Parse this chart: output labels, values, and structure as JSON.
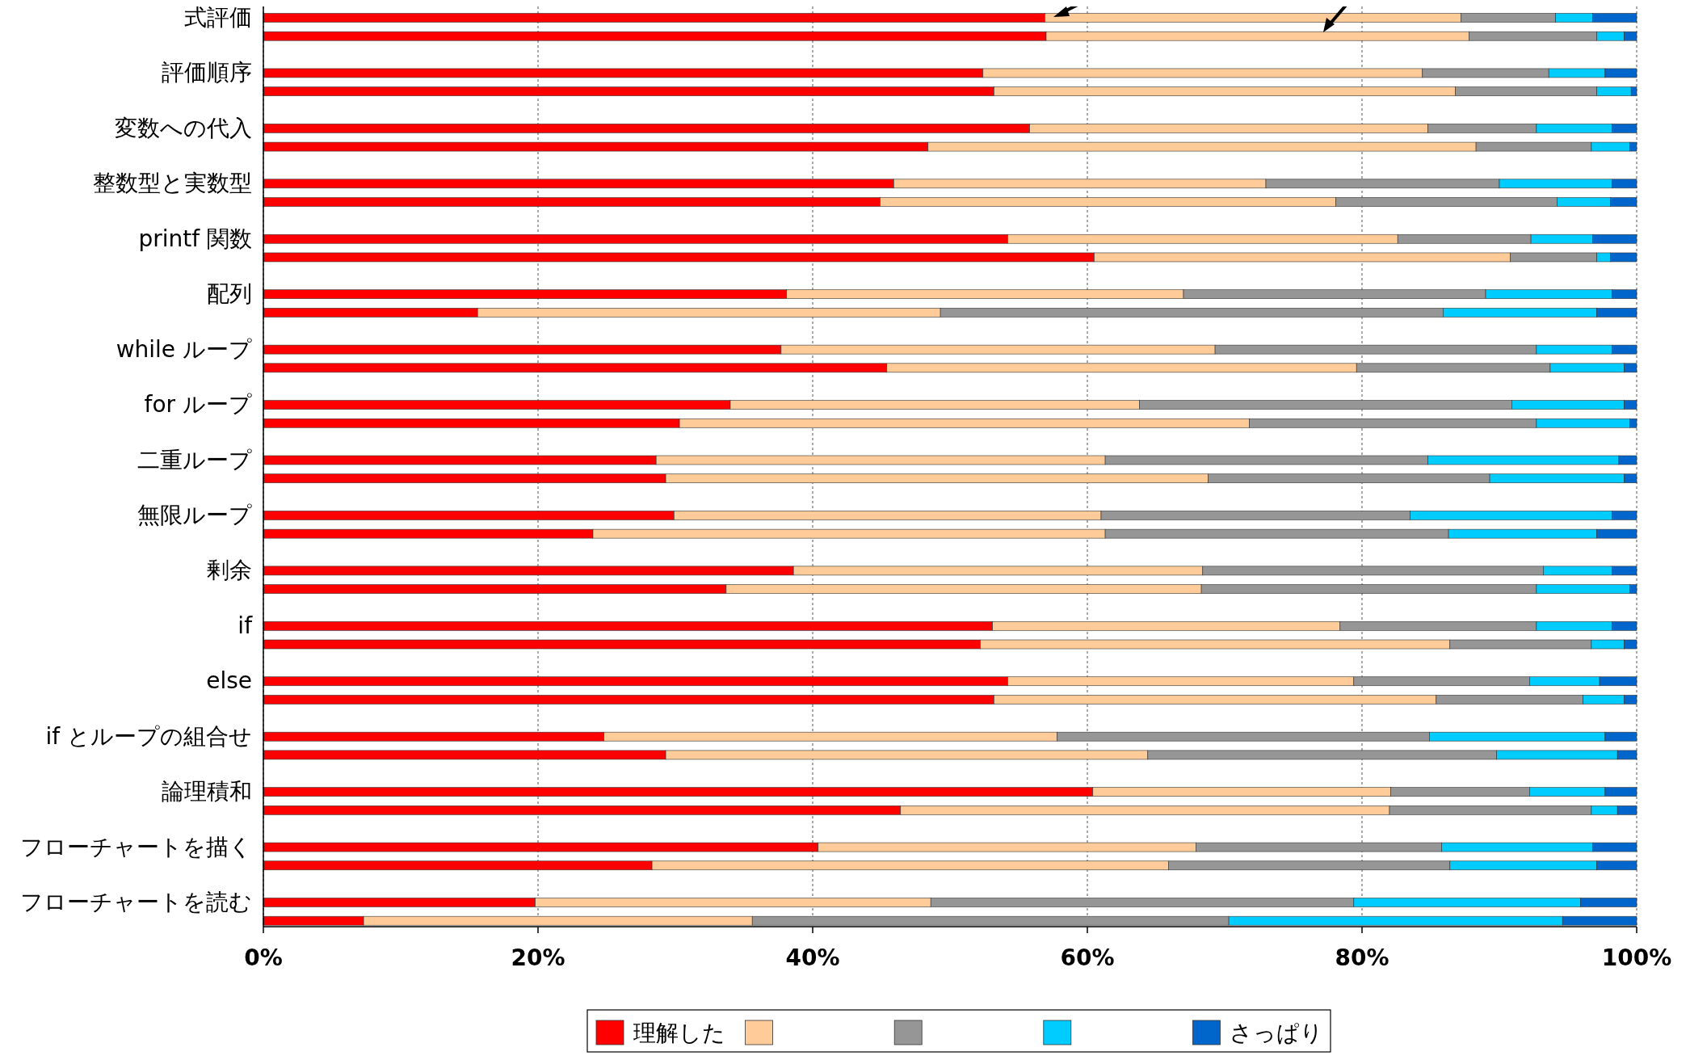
{
  "chart_data": {
    "type": "bar",
    "orientation": "horizontal",
    "stacked": true,
    "grid": "x",
    "legend": "bottom",
    "categories": [
      "式評価",
      null,
      "評価順序",
      null,
      "変数への代入",
      null,
      "整数型と実数型",
      null,
      "printf 関数",
      null,
      "配列",
      null,
      "while ループ",
      null,
      "for ループ",
      null,
      "二重ループ",
      null,
      "無限ループ",
      null,
      "剰余",
      null,
      "if",
      null,
      "else",
      null,
      "if とループの組合せ",
      null,
      "論理積和",
      null,
      "フローチャートを描く",
      null,
      "フローチャートを読む",
      null
    ],
    "xlim": [
      0,
      100
    ],
    "xticks": [
      {
        "value": 0,
        "label": "0%"
      },
      {
        "value": 20,
        "label": "20%"
      },
      {
        "value": 40,
        "label": "40%"
      },
      {
        "value": 60,
        "label": "60%"
      },
      {
        "value": 80,
        "label": "80%"
      },
      {
        "value": 100,
        "label": "100%"
      }
    ],
    "series": [
      {
        "name": "理解した",
        "color": "#ff0000",
        "values": [
          56.9,
          57.0,
          52.4,
          53.2,
          55.8,
          48.4,
          45.9,
          44.9,
          54.2,
          60.5,
          38.1,
          15.6,
          37.7,
          45.4,
          34.0,
          30.3,
          28.6,
          29.3,
          29.9,
          24.0,
          38.6,
          33.7,
          53.1,
          52.2,
          54.2,
          53.2,
          24.8,
          29.3,
          60.4,
          46.4,
          40.4,
          28.3,
          19.8,
          7.3
        ]
      },
      {
        "color": "#ffcc99",
        "values": [
          30.3,
          30.8,
          32.0,
          33.6,
          29.0,
          39.9,
          27.1,
          33.2,
          28.4,
          30.3,
          28.9,
          33.7,
          31.6,
          34.2,
          29.8,
          41.5,
          32.7,
          39.5,
          31.1,
          37.3,
          29.8,
          34.6,
          25.3,
          34.2,
          25.2,
          32.2,
          33.0,
          35.1,
          21.7,
          35.6,
          27.5,
          37.6,
          28.8,
          28.3
        ]
      },
      {
        "color": "#969696",
        "values": [
          6.9,
          9.3,
          9.2,
          10.3,
          7.9,
          8.4,
          17.0,
          16.1,
          9.7,
          6.3,
          22.0,
          36.6,
          23.4,
          14.1,
          27.1,
          20.9,
          23.5,
          20.5,
          22.5,
          25.0,
          24.8,
          24.4,
          14.3,
          10.3,
          12.8,
          10.7,
          27.1,
          25.4,
          10.1,
          14.7,
          17.9,
          20.5,
          30.8,
          34.7
        ]
      },
      {
        "color": "#00ccff",
        "values": [
          2.7,
          2.0,
          4.1,
          2.5,
          5.5,
          2.8,
          8.2,
          3.9,
          4.5,
          1.0,
          9.2,
          11.2,
          5.5,
          5.4,
          8.2,
          6.8,
          13.9,
          9.8,
          14.7,
          10.8,
          5.0,
          6.8,
          5.5,
          2.4,
          5.1,
          3.0,
          12.8,
          8.8,
          5.5,
          1.9,
          11.0,
          10.7,
          16.5,
          24.3
        ]
      },
      {
        "name": "さっぱり",
        "color": "#0066cc",
        "values": [
          3.2,
          0.9,
          2.3,
          0.4,
          1.8,
          0.5,
          1.8,
          1.9,
          3.2,
          1.9,
          1.8,
          2.9,
          1.8,
          0.9,
          0.9,
          0.5,
          1.3,
          0.9,
          1.8,
          2.9,
          1.8,
          0.5,
          1.8,
          0.9,
          2.7,
          0.9,
          2.3,
          1.4,
          2.3,
          1.4,
          3.2,
          2.9,
          4.1,
          5.4
        ]
      }
    ]
  }
}
